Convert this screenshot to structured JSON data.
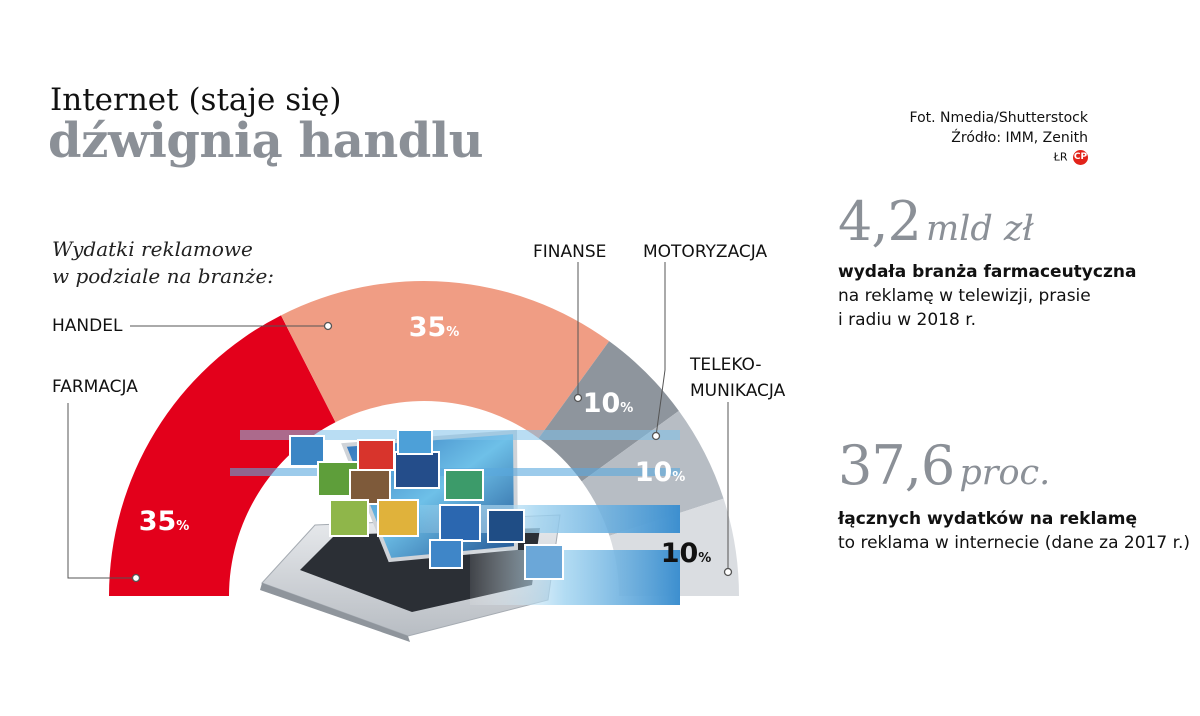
{
  "title_line1": "Internet (staje się)",
  "title_line2": "dźwignią handlu",
  "credits": {
    "photo": "Fot. Nmedia/Shutterstock",
    "source": "Źródło: IMM, Zenith",
    "author": "ŁR",
    "logo": "CP"
  },
  "subtitle_line1": "Wydatki reklamowe",
  "subtitle_line2": "w podziale na branże:",
  "chart_data": {
    "type": "pie",
    "shape": "half-donut",
    "slices": [
      {
        "label": "FARMACJA",
        "value": 35,
        "display": "35",
        "color": "#e3001b"
      },
      {
        "label": "HANDEL",
        "value": 35,
        "display": "35",
        "color": "#f09d84"
      },
      {
        "label": "FINANSE",
        "value": 10,
        "display": "10",
        "color": "#8e959d"
      },
      {
        "label": "MOTORYZACJA",
        "value": 10,
        "display": "10",
        "color": "#b7bdc4"
      },
      {
        "label_line1": "TELEKO-",
        "label_line2": "MUNIKACJA",
        "value": 10,
        "display": "10",
        "color": "#dadde1"
      }
    ],
    "unit": "%"
  },
  "stats": [
    {
      "number": "4,2",
      "unit": "mld zł",
      "bold": "wydała branża farmaceutyczna",
      "line2": "na  reklamę w telewizji, prasie",
      "line3": "i radiu w 2018 r."
    },
    {
      "number": "37,6",
      "unit": "proc.",
      "bold": "łącznych wydatków na reklamę",
      "line2": "to reklama w internecie (dane za 2017 r.)"
    }
  ]
}
